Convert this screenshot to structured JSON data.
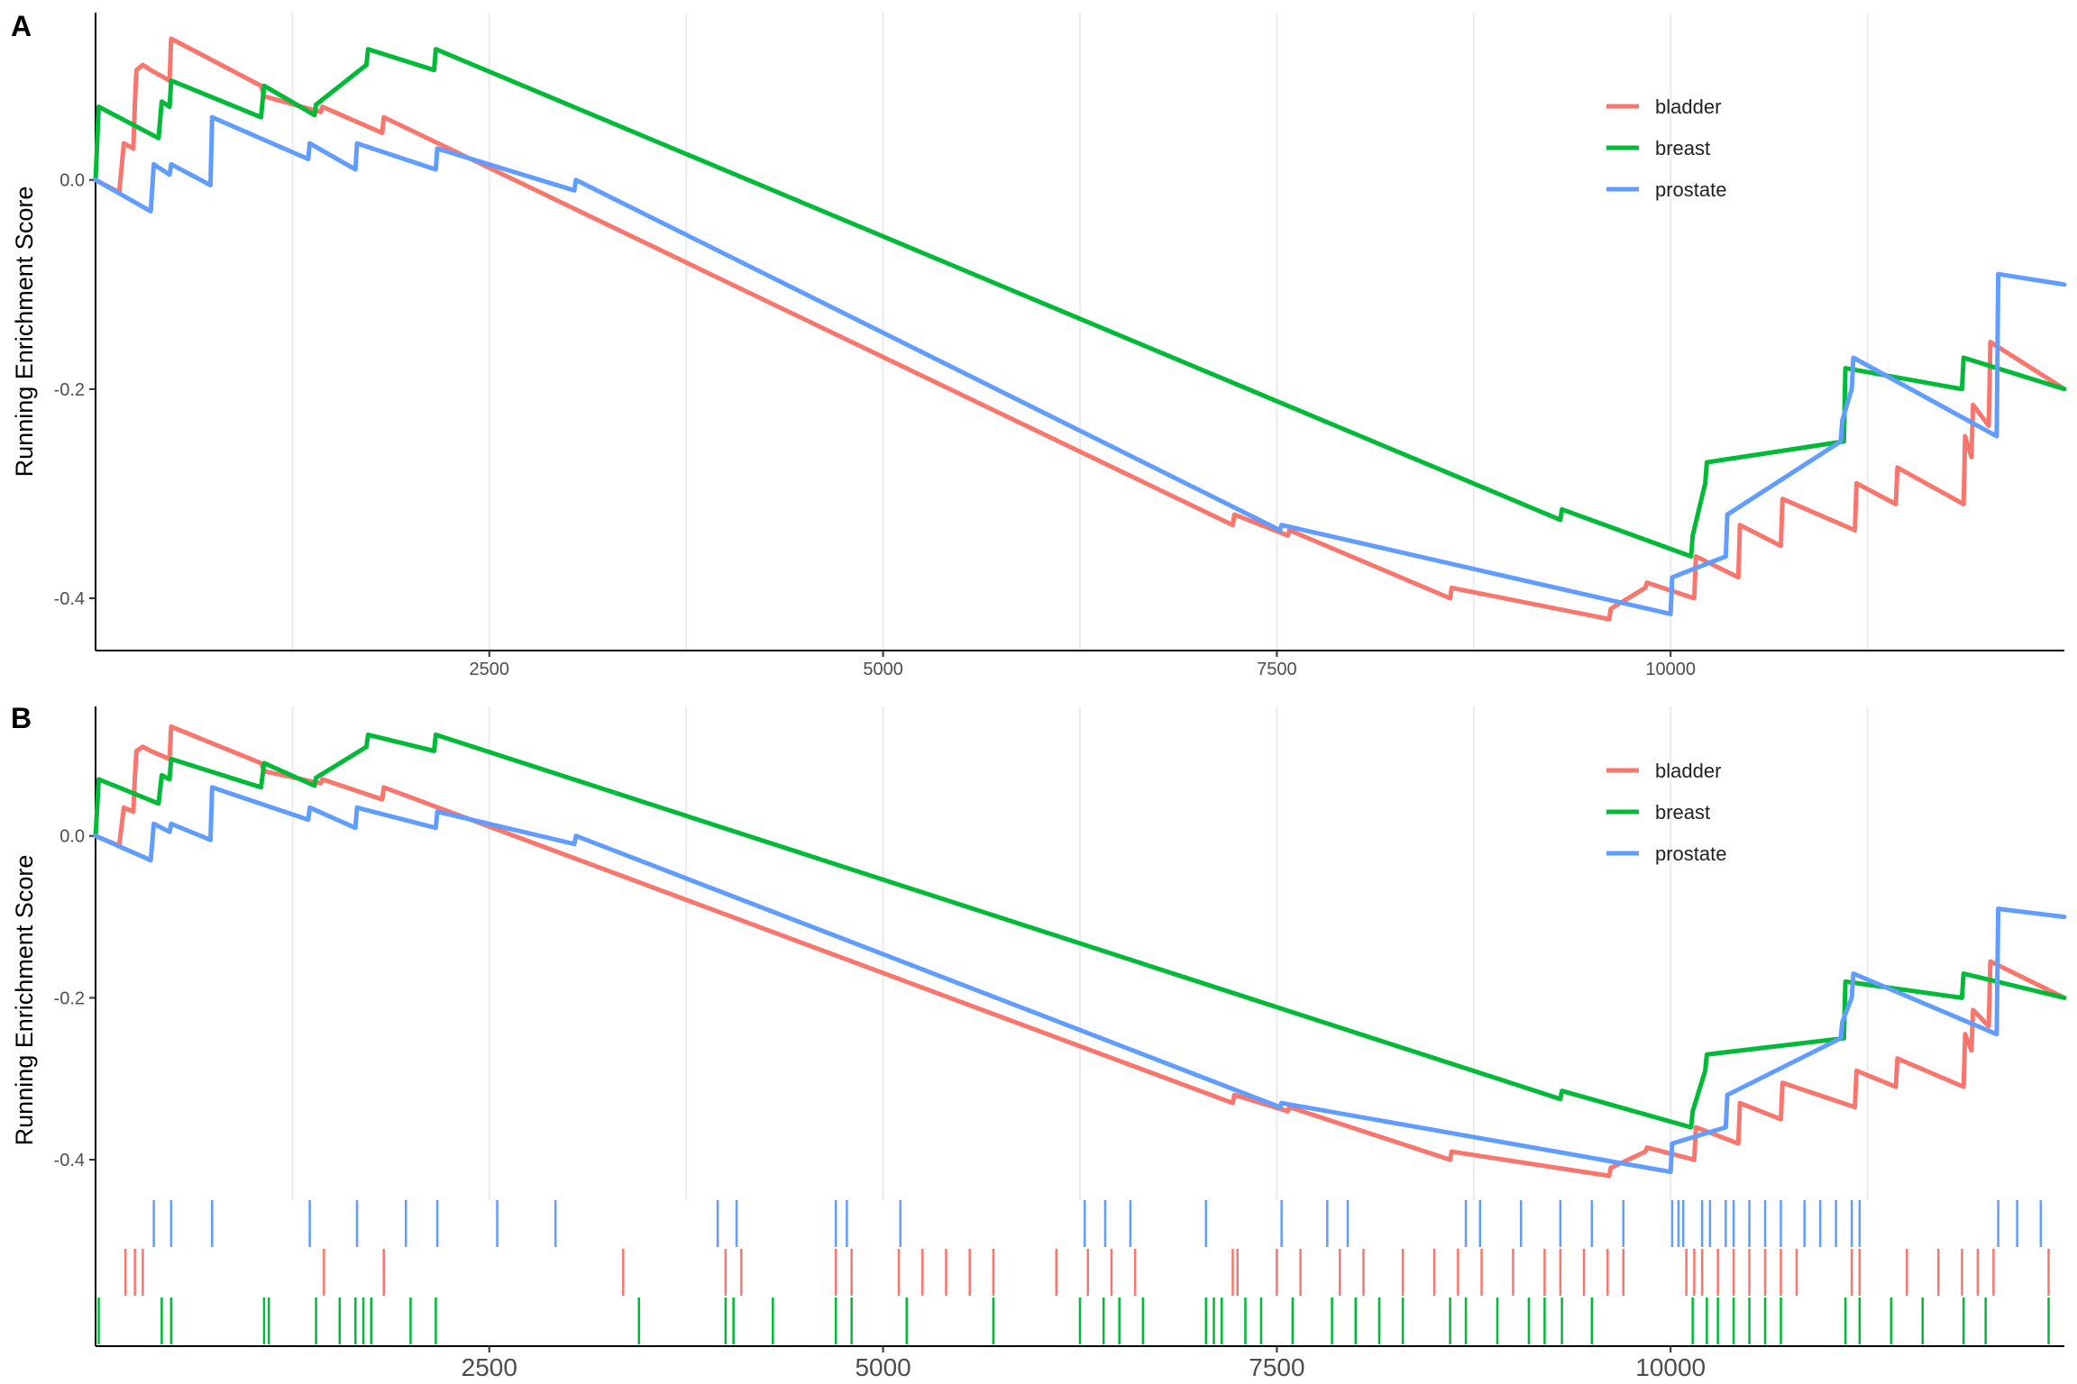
{
  "panels": [
    {
      "label": "A"
    },
    {
      "label": "B"
    }
  ],
  "chart_data": [
    {
      "type": "line",
      "panel": "A",
      "ylabel": "Running Enrichment Score",
      "xlabel": "",
      "xlim": [
        0,
        12500
      ],
      "ylim": [
        -0.45,
        0.16
      ],
      "xticks": [
        2500,
        5000,
        7500,
        10000
      ],
      "xtick_labels": [
        "2500",
        "5000",
        "7500",
        "10000"
      ],
      "yticks": [
        0.0,
        -0.2,
        -0.4
      ],
      "ytick_labels": [
        "0.0",
        "-0.2",
        "-0.4"
      ],
      "grid": "vertical",
      "legend": "top-right",
      "series": [
        {
          "name": "bladder",
          "color": "#F8766D",
          "x": [
            0,
            150,
            180,
            240,
            250,
            260,
            300,
            350,
            470,
            480,
            1050,
            1070,
            1430,
            1440,
            1820,
            1830,
            7220,
            7230,
            7570,
            7580,
            8600,
            8610,
            9610,
            9620,
            9840,
            9850,
            10150,
            10160,
            10430,
            10440,
            10700,
            10710,
            11170,
            11180,
            11430,
            11440,
            11860,
            11870,
            11910,
            11920,
            12020,
            12030,
            12500
          ],
          "y": [
            0.0,
            -0.012,
            0.035,
            0.03,
            0.075,
            0.105,
            0.11,
            0.105,
            0.095,
            0.135,
            0.09,
            0.08,
            0.065,
            0.07,
            0.045,
            0.06,
            -0.33,
            -0.32,
            -0.34,
            -0.335,
            -0.4,
            -0.39,
            -0.42,
            -0.41,
            -0.39,
            -0.385,
            -0.4,
            -0.36,
            -0.38,
            -0.33,
            -0.35,
            -0.305,
            -0.335,
            -0.29,
            -0.31,
            -0.275,
            -0.31,
            -0.245,
            -0.265,
            -0.215,
            -0.235,
            -0.155,
            -0.2
          ]
        },
        {
          "name": "breast",
          "color": "#00BA38",
          "x": [
            0,
            20,
            400,
            420,
            470,
            480,
            1050,
            1070,
            1390,
            1400,
            1720,
            1730,
            2150,
            2160,
            9300,
            9310,
            10130,
            10140,
            10220,
            10230,
            11100,
            11110,
            11850,
            11860,
            12500
          ],
          "y": [
            0.0,
            0.07,
            0.04,
            0.075,
            0.07,
            0.095,
            0.06,
            0.09,
            0.062,
            0.072,
            0.11,
            0.125,
            0.105,
            0.125,
            -0.325,
            -0.315,
            -0.36,
            -0.34,
            -0.29,
            -0.27,
            -0.25,
            -0.18,
            -0.2,
            -0.17,
            -0.2
          ]
        },
        {
          "name": "prostate",
          "color": "#619CFF",
          "x": [
            0,
            350,
            370,
            470,
            480,
            730,
            740,
            1350,
            1360,
            1650,
            1660,
            2160,
            2170,
            3040,
            3050,
            7520,
            7530,
            10000,
            10010,
            10350,
            10360,
            11080,
            11090,
            11150,
            11160,
            12070,
            12080,
            12500
          ],
          "y": [
            0.0,
            -0.03,
            0.015,
            0.005,
            0.015,
            -0.005,
            0.06,
            0.02,
            0.035,
            0.01,
            0.035,
            0.01,
            0.03,
            -0.01,
            0.0,
            -0.335,
            -0.33,
            -0.415,
            -0.38,
            -0.36,
            -0.32,
            -0.25,
            -0.23,
            -0.2,
            -0.17,
            -0.245,
            -0.09,
            -0.1
          ]
        }
      ]
    },
    {
      "type": "line",
      "panel": "B",
      "ylabel": "Running Enrichment Score",
      "xlabel": "",
      "xlim": [
        0,
        12500
      ],
      "ylim": [
        -0.45,
        0.16
      ],
      "xticks": [
        2500,
        5000,
        7500,
        10000
      ],
      "xtick_labels": [
        "2500",
        "5000",
        "7500",
        "10000"
      ],
      "yticks": [
        0.0,
        -0.2,
        -0.4
      ],
      "ytick_labels": [
        "0.0",
        "-0.2",
        "-0.4"
      ],
      "grid": "vertical",
      "legend": "top-right",
      "rug_rows": [
        "prostate",
        "bladder",
        "breast"
      ],
      "series": [
        {
          "name": "bladder",
          "color": "#F8766D",
          "x": [
            0,
            150,
            180,
            240,
            250,
            260,
            300,
            350,
            470,
            480,
            1050,
            1070,
            1430,
            1440,
            1820,
            1830,
            7220,
            7230,
            7570,
            7580,
            8600,
            8610,
            9610,
            9620,
            9840,
            9850,
            10150,
            10160,
            10430,
            10440,
            10700,
            10710,
            11170,
            11180,
            11430,
            11440,
            11860,
            11870,
            11910,
            11920,
            12020,
            12030,
            12500
          ],
          "y": [
            0.0,
            -0.012,
            0.035,
            0.03,
            0.075,
            0.105,
            0.11,
            0.105,
            0.095,
            0.135,
            0.09,
            0.08,
            0.065,
            0.07,
            0.045,
            0.06,
            -0.33,
            -0.32,
            -0.34,
            -0.335,
            -0.4,
            -0.39,
            -0.42,
            -0.41,
            -0.39,
            -0.385,
            -0.4,
            -0.36,
            -0.38,
            -0.33,
            -0.35,
            -0.305,
            -0.335,
            -0.29,
            -0.31,
            -0.275,
            -0.31,
            -0.245,
            -0.265,
            -0.215,
            -0.235,
            -0.155,
            -0.2
          ],
          "hits": [
            190,
            250,
            300,
            1450,
            1830,
            3350,
            4000,
            4100,
            4700,
            4800,
            5100,
            5250,
            5400,
            5550,
            5700,
            6100,
            6300,
            6450,
            6600,
            7220,
            7250,
            7500,
            7650,
            7900,
            8050,
            8300,
            8500,
            8650,
            8800,
            9000,
            9200,
            9300,
            9450,
            9600,
            9700,
            10100,
            10150,
            10200,
            10300,
            10400,
            10500,
            10600,
            10700,
            10800,
            11150,
            11200,
            11500,
            11700,
            11850,
            11950,
            12050,
            12400
          ]
        },
        {
          "name": "breast",
          "color": "#00BA38",
          "x": [
            0,
            20,
            400,
            420,
            470,
            480,
            1050,
            1070,
            1390,
            1400,
            1720,
            1730,
            2150,
            2160,
            9300,
            9310,
            10130,
            10140,
            10220,
            10230,
            11100,
            11110,
            11850,
            11860,
            12500
          ],
          "y": [
            0.0,
            0.07,
            0.04,
            0.075,
            0.07,
            0.095,
            0.06,
            0.09,
            0.062,
            0.072,
            0.11,
            0.125,
            0.105,
            0.125,
            -0.325,
            -0.315,
            -0.36,
            -0.34,
            -0.29,
            -0.27,
            -0.25,
            -0.18,
            -0.2,
            -0.17,
            -0.2
          ],
          "hits": [
            20,
            420,
            480,
            1070,
            1100,
            1400,
            1550,
            1650,
            1700,
            1750,
            2000,
            2160,
            3450,
            4000,
            4050,
            4300,
            4700,
            4800,
            5150,
            5700,
            6250,
            6400,
            6500,
            6650,
            7050,
            7100,
            7150,
            7300,
            7400,
            7600,
            7850,
            8000,
            8150,
            8300,
            8600,
            8700,
            8900,
            9100,
            9200,
            9310,
            9500,
            10140,
            10230,
            10300,
            10400,
            10500,
            10600,
            10700,
            11110,
            11200,
            11400,
            11600,
            11860,
            12000,
            12400
          ]
        },
        {
          "name": "prostate",
          "color": "#619CFF",
          "x": [
            0,
            350,
            370,
            470,
            480,
            730,
            740,
            1350,
            1360,
            1650,
            1660,
            2160,
            2170,
            3040,
            3050,
            7520,
            7530,
            10000,
            10010,
            10350,
            10360,
            11080,
            11090,
            11150,
            11160,
            12070,
            12080,
            12500
          ],
          "y": [
            0.0,
            -0.03,
            0.015,
            0.005,
            0.015,
            -0.005,
            0.06,
            0.02,
            0.035,
            0.01,
            0.035,
            0.01,
            0.03,
            -0.01,
            0.0,
            -0.335,
            -0.33,
            -0.415,
            -0.38,
            -0.36,
            -0.32,
            -0.25,
            -0.23,
            -0.2,
            -0.17,
            -0.245,
            -0.09,
            -0.1
          ],
          "hits": [
            370,
            480,
            740,
            1360,
            1660,
            1970,
            2170,
            2550,
            2920,
            3950,
            4070,
            4700,
            4770,
            5110,
            6280,
            6410,
            6570,
            7050,
            7530,
            7820,
            7950,
            8700,
            8790,
            9050,
            9300,
            9500,
            9700,
            10010,
            10050,
            10080,
            10200,
            10250,
            10350,
            10400,
            10500,
            10600,
            10700,
            10850,
            10950,
            11050,
            11150,
            11200,
            12080,
            12200,
            12350
          ]
        }
      ]
    }
  ]
}
